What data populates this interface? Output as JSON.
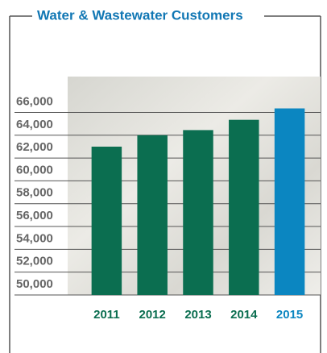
{
  "chart_data": {
    "type": "bar",
    "title": "Water & Wastewater Customers",
    "categories": [
      "2011",
      "2012",
      "2013",
      "2014",
      "2015"
    ],
    "values": [
      63000,
      64000,
      64450,
      65350,
      66350
    ],
    "colors": [
      "#0b6e50",
      "#0b6e50",
      "#0b6e50",
      "#0b6e50",
      "#0b86c1"
    ],
    "ylim": [
      50000,
      69000
    ],
    "yticks": [
      {
        "value": 50000,
        "label": "50,000"
      },
      {
        "value": 52000,
        "label": "52,000"
      },
      {
        "value": 54000,
        "label": "54,000"
      },
      {
        "value": 56000,
        "label": "56,000"
      },
      {
        "value": 58000,
        "label": "58,000"
      },
      {
        "value": 60000,
        "label": "60,000"
      },
      {
        "value": 62000,
        "label": "62,000"
      },
      {
        "value": 64000,
        "label": "64,000"
      },
      {
        "value": 66000,
        "label": "66,000"
      }
    ],
    "grid": true
  }
}
